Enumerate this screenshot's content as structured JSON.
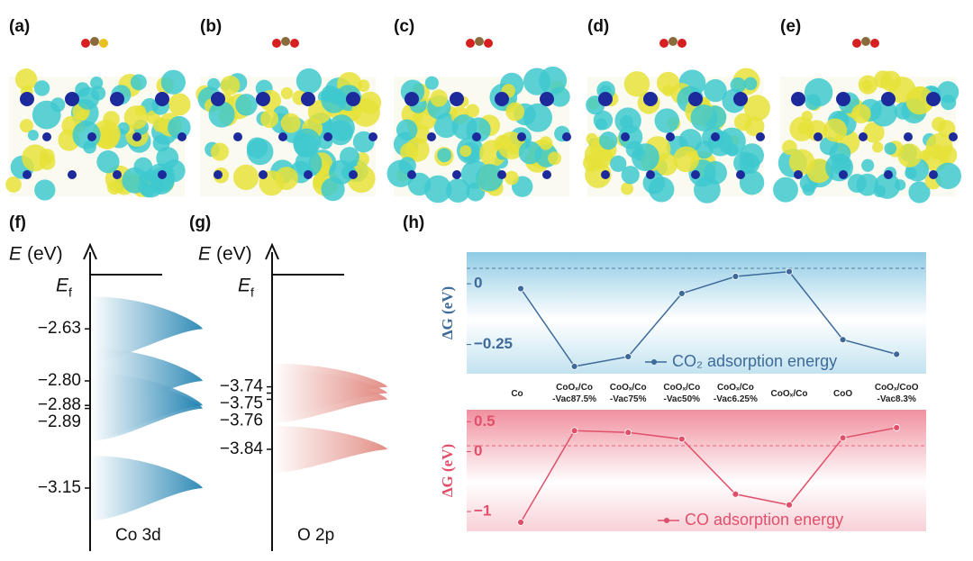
{
  "figure_labels": [
    "(a)",
    "(b)",
    "(c)",
    "(d)",
    "(e)",
    "(f)",
    "(g)",
    "(h)"
  ],
  "dos": [
    {
      "axis_symbol": "E",
      "axis_unit": "(eV)",
      "fermi_symbol": "E",
      "fermi_subscript": "f",
      "name": "Co 3d",
      "color": "#1b7fb0",
      "ylim": [
        -3.35,
        -2.35
      ],
      "levels": [
        {
          "value": -2.63,
          "label": "−2.63"
        },
        {
          "value": -2.8,
          "label": "−2.80"
        },
        {
          "value": -2.88,
          "label": "−2.88"
        },
        {
          "value": -2.89,
          "label": "−2.89"
        },
        {
          "value": -3.15,
          "label": "−3.15"
        }
      ]
    },
    {
      "axis_symbol": "E",
      "axis_unit": "(eV)",
      "fermi_symbol": "E",
      "fermi_subscript": "f",
      "name": "O 2p",
      "color": "#e0837a",
      "ylim": [
        -4.0,
        -3.51
      ],
      "levels": [
        {
          "value": -3.74,
          "label": "−3.74"
        },
        {
          "value": -3.75,
          "label": "−3.75"
        },
        {
          "value": -3.76,
          "label": "−3.76"
        },
        {
          "value": -3.84,
          "label": "−3.84"
        }
      ]
    }
  ],
  "chart_data": [
    {
      "type": "line",
      "ylabel": "ΔG (eV)",
      "categories": [
        "Co",
        "CoOₓ/Co\n-Vac87.5%",
        "CoOₓ/Co\n-Vac75%",
        "CoOₓ/Co\n-Vac50%",
        "CoOₓ/Co\n-Vac6.25%",
        "CoOₓ/Co",
        "CoO",
        "CoOₓ/CoO\n-Vac8.3%"
      ],
      "series": [
        {
          "name": "CO₂ adsorption energy",
          "color": "#3d6a9a",
          "values": [
            -0.02,
            -0.34,
            -0.3,
            -0.04,
            0.03,
            0.05,
            -0.23,
            -0.29
          ]
        }
      ],
      "ylim": [
        -0.37,
        0.13
      ],
      "yticks": [
        {
          "value": -0.25,
          "label": "−0.25"
        },
        0
      ],
      "legend": "bottom"
    },
    {
      "type": "line",
      "ylabel": "ΔG (eV)",
      "series": [
        {
          "name": "CO adsorption energy",
          "color": "#e0506a",
          "values": [
            -1.18,
            0.35,
            0.32,
            0.21,
            -0.71,
            -0.89,
            0.23,
            0.4
          ]
        }
      ],
      "ylim": [
        -1.33,
        0.7
      ],
      "yticks": [
        {
          "value": -1,
          "label": "−1"
        },
        0,
        0.5
      ],
      "legend": "bottom"
    }
  ]
}
